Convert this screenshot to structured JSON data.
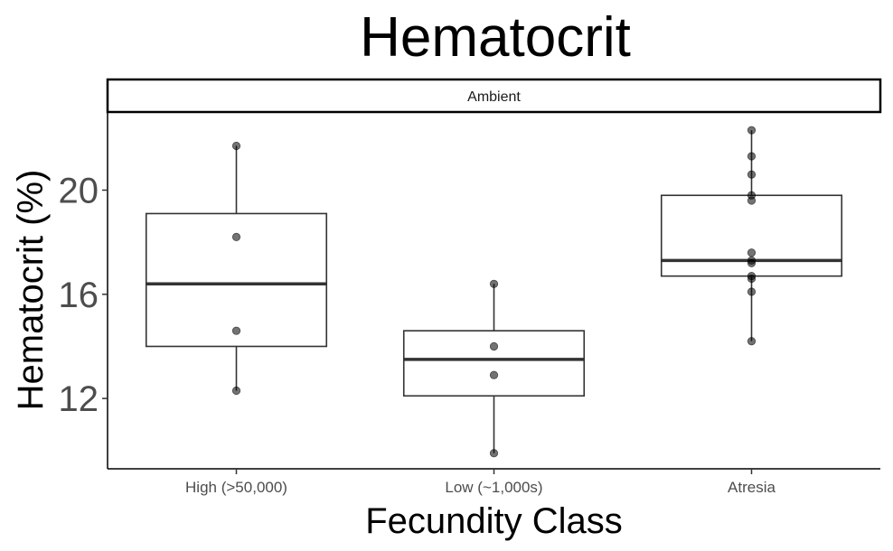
{
  "chart_data": {
    "type": "box",
    "title": "Hematocrit",
    "xlabel": "Fecundity Class",
    "ylabel": "Hematocrit (%)",
    "facet": "Ambient",
    "categories": [
      "High (>50,000)",
      "Low (~1,000s)",
      "Atresia"
    ],
    "yticks": [
      12,
      16,
      20
    ],
    "ylim": [
      9.3,
      23.0
    ],
    "grid": false,
    "boxes": [
      {
        "category": "High (>50,000)",
        "whisker_low": 12.3,
        "q1": 14.0,
        "median": 16.4,
        "q3": 19.1,
        "whisker_high": 21.7
      },
      {
        "category": "Low (~1,000s)",
        "whisker_low": 9.9,
        "q1": 12.1,
        "median": 13.5,
        "q3": 14.6,
        "whisker_high": 16.4
      },
      {
        "category": "Atresia",
        "whisker_low": 14.2,
        "q1": 16.7,
        "median": 17.3,
        "q3": 19.8,
        "whisker_high": 22.3
      }
    ],
    "points": [
      {
        "category": "High (>50,000)",
        "values": [
          21.7,
          18.2,
          14.6,
          12.3
        ]
      },
      {
        "category": "Low (~1,000s)",
        "values": [
          16.4,
          14.0,
          12.9,
          9.9
        ]
      },
      {
        "category": "Atresia",
        "values": [
          22.3,
          21.3,
          20.6,
          19.8,
          19.6,
          17.6,
          17.3,
          17.2,
          16.7,
          16.6,
          16.1,
          14.2
        ]
      }
    ]
  }
}
